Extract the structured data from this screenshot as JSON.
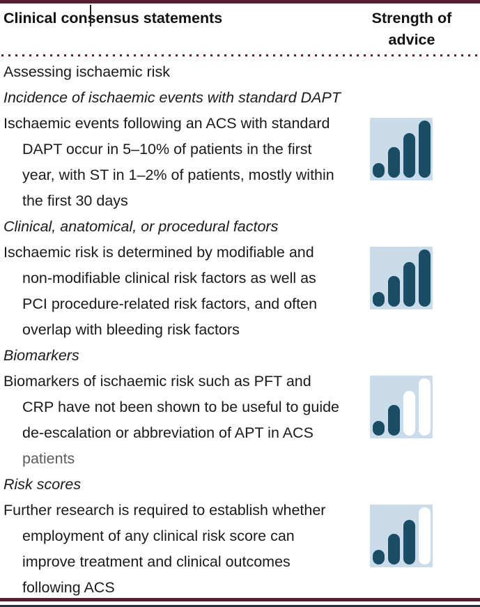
{
  "header": {
    "title": "Clinical consensus statements",
    "strength_column": "Strength of advice"
  },
  "section_heading": "Assessing ischaemic risk",
  "rows": [
    {
      "subheading": "Incidence of ischaemic events with standard DAPT",
      "lines": [
        "Ischaemic events following an ACS with standard",
        "DAPT occur in 5–10% of patients in the first",
        "year, with ST in 1–2% of patients, mostly within",
        "the first 30 days"
      ],
      "muted_lines": [],
      "strength": {
        "filled": 4,
        "total": 4
      }
    },
    {
      "subheading": "Clinical, anatomical, or procedural factors",
      "lines": [
        "Ischaemic risk is determined by modifiable and",
        "non-modifiable clinical risk factors as well as",
        "PCI procedure-related risk factors, and often",
        "overlap with bleeding risk factors"
      ],
      "muted_lines": [],
      "strength": {
        "filled": 4,
        "total": 4
      }
    },
    {
      "subheading": "Biomarkers",
      "lines": [
        "Biomarkers of ischaemic risk such as PFT and",
        "CRP have not been shown to be useful to guide",
        "de-escalation or abbreviation of APT in ACS",
        "patients"
      ],
      "muted_lines": [
        3
      ],
      "strength": {
        "filled": 2,
        "total": 4
      }
    },
    {
      "subheading": "Risk scores",
      "lines": [
        "Further research is required to establish whether",
        "employment of any clinical risk score can",
        "improve treatment and clinical outcomes",
        "following ACS"
      ],
      "muted_lines": [],
      "strength": {
        "filled": 3,
        "total": 4
      }
    }
  ],
  "colors": {
    "border_maroon": "#571f33",
    "icon_background": "#cadbe9",
    "icon_bar_filled": "#1b4c66",
    "icon_bar_empty": "#ffffff",
    "text": "#1a1a1a",
    "muted_text": "#5c5c5c"
  }
}
